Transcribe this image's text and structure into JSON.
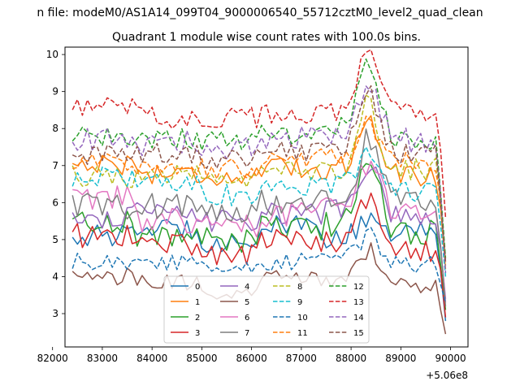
{
  "suptitle": "n file: modeM0/AS1A14_099T04_9000006540_55712cztM0_level2_quad_clean",
  "chart_data": {
    "type": "line",
    "title": "Quadrant 1 module wise count rates with 100.0s bins.",
    "xlabel": "",
    "ylabel": "",
    "x_offset_label": "+5.06e8",
    "xlim": [
      82250,
      90350
    ],
    "ylim": [
      2.1,
      10.2
    ],
    "xticks": [
      82000,
      83000,
      84000,
      85000,
      86000,
      87000,
      88000,
      89000,
      90000
    ],
    "yticks": [
      3,
      4,
      5,
      6,
      7,
      8,
      9,
      10
    ],
    "x_start": 82400,
    "x_step": 100,
    "n_points": 76,
    "legend_ncol": 4,
    "legend_loc": "lower center",
    "series": [
      {
        "name": "0",
        "color": "#1f77b4",
        "dash": false,
        "mean": 5.1,
        "amp": 0.3,
        "peak": 0.4,
        "end": 2.8,
        "wave": [
          0.0,
          0.2,
          -0.15,
          0.25,
          -0.05,
          0.1
        ]
      },
      {
        "name": "1",
        "color": "#ff7f0e",
        "dash": false,
        "mean": 6.8,
        "amp": 0.3,
        "peak": 1.4,
        "end": 4.2,
        "wave": [
          0.25,
          0.0,
          -0.1,
          0.1,
          0.15,
          -0.05
        ]
      },
      {
        "name": "2",
        "color": "#2ca02c",
        "dash": false,
        "mean": 5.2,
        "amp": 0.35,
        "peak": 1.9,
        "end": 3.1,
        "wave": [
          0.3,
          -0.1,
          -0.2,
          0.1,
          0.2,
          0.0
        ]
      },
      {
        "name": "3",
        "color": "#d62728",
        "dash": false,
        "mean": 4.8,
        "amp": 0.35,
        "peak": 1.2,
        "end": 2.9,
        "wave": [
          0.3,
          0.1,
          -0.2,
          0.2,
          0.1,
          -0.1
        ]
      },
      {
        "name": "4",
        "color": "#9467bd",
        "dash": false,
        "mean": 5.5,
        "amp": 0.3,
        "peak": 1.2,
        "end": 3.4,
        "wave": [
          0.1,
          0.2,
          0.0,
          0.2,
          0.3,
          0.1
        ]
      },
      {
        "name": "5",
        "color": "#8c564b",
        "dash": false,
        "mean": 3.9,
        "amp": 0.25,
        "peak": 0.9,
        "end": 2.45,
        "wave": [
          0.1,
          -0.1,
          -0.3,
          0.1,
          -0.1,
          -0.2
        ]
      },
      {
        "name": "6",
        "color": "#e377c2",
        "dash": false,
        "mean": 5.5,
        "amp": 0.35,
        "peak": 1.2,
        "end": 3.3,
        "wave": [
          0.6,
          0.0,
          -0.1,
          0.2,
          0.4,
          0.2
        ]
      },
      {
        "name": "7",
        "color": "#7f7f7f",
        "dash": false,
        "mean": 5.7,
        "amp": 0.35,
        "peak": 1.6,
        "end": 3.2,
        "wave": [
          0.2,
          0.2,
          0.1,
          0.3,
          0.4,
          0.3
        ]
      },
      {
        "name": "8",
        "color": "#bcbd22",
        "dash": true,
        "mean": 6.6,
        "amp": 0.3,
        "peak": 1.8,
        "end": 4.3,
        "wave": [
          0.1,
          0.1,
          -0.1,
          0.2,
          0.3,
          0.3
        ]
      },
      {
        "name": "9",
        "color": "#17becf",
        "dash": true,
        "mean": 6.4,
        "amp": 0.3,
        "peak": 0.8,
        "end": 4.0,
        "wave": [
          0.3,
          0.2,
          -0.2,
          0.0,
          0.1,
          -0.1
        ]
      },
      {
        "name": "10",
        "color": "#1f77b4",
        "dash": true,
        "mean": 4.4,
        "amp": 0.25,
        "peak": 0.6,
        "end": 3.3,
        "wave": [
          0.0,
          0.0,
          -0.2,
          0.0,
          0.1,
          -0.1
        ]
      },
      {
        "name": "11",
        "color": "#ff7f0e",
        "dash": true,
        "mean": 6.9,
        "amp": 0.3,
        "peak": 1.0,
        "end": 4.4,
        "wave": [
          0.2,
          0.1,
          0.0,
          0.3,
          0.3,
          0.2
        ]
      },
      {
        "name": "12",
        "color": "#2ca02c",
        "dash": true,
        "mean": 7.6,
        "amp": 0.3,
        "peak": 1.8,
        "end": 4.5,
        "wave": [
          0.2,
          0.1,
          0.1,
          0.2,
          0.4,
          0.0
        ]
      },
      {
        "name": "13",
        "color": "#d62728",
        "dash": true,
        "mean": 8.2,
        "amp": 0.3,
        "peak": 1.5,
        "end": 5.6,
        "wave": [
          0.4,
          0.1,
          0.1,
          0.2,
          0.3,
          0.2
        ]
      },
      {
        "name": "14",
        "color": "#9467bd",
        "dash": true,
        "mean": 7.4,
        "amp": 0.35,
        "peak": 1.3,
        "end": 4.1,
        "wave": [
          0.3,
          0.2,
          0.1,
          0.3,
          0.4,
          0.3
        ]
      },
      {
        "name": "15",
        "color": "#8c564b",
        "dash": true,
        "mean": 7.2,
        "amp": 0.3,
        "peak": 1.4,
        "end": 4.4,
        "wave": [
          0.1,
          0.1,
          0.0,
          0.2,
          0.3,
          0.1
        ]
      }
    ]
  }
}
